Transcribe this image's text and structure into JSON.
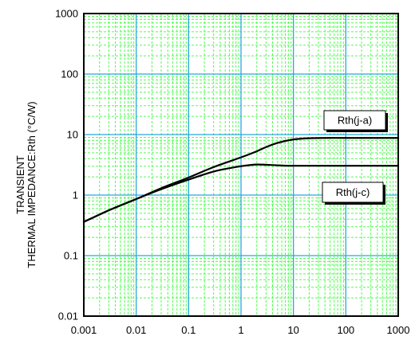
{
  "chart_data": {
    "type": "line",
    "title": "",
    "xlabel": "",
    "ylabel": [
      "TRANSIENT",
      "THERMAL IMPEDANCE:Rth (°C/W)"
    ],
    "x_scale": "log",
    "y_scale": "log",
    "xlim": [
      0.001,
      1000
    ],
    "ylim": [
      0.01,
      1000
    ],
    "grid": "major and minor, both axes",
    "x_ticks": [
      "0.001",
      "0.01",
      "0.1",
      "1",
      "10",
      "100",
      "1000"
    ],
    "y_ticks": [
      "0.01",
      "0.1",
      "1",
      "10",
      "100",
      "1000"
    ],
    "x_tick_values": [
      0.001,
      0.01,
      0.1,
      1,
      10,
      100,
      1000
    ],
    "y_tick_values": [
      0.01,
      0.1,
      1,
      10,
      100,
      1000
    ],
    "series": [
      {
        "name": "Rth(j-a)",
        "points": [
          [
            0.001,
            0.36
          ],
          [
            0.003,
            0.56
          ],
          [
            0.01,
            0.86
          ],
          [
            0.03,
            1.3
          ],
          [
            0.1,
            1.95
          ],
          [
            0.3,
            2.9
          ],
          [
            1,
            4.2
          ],
          [
            2,
            5.3
          ],
          [
            3,
            6.2
          ],
          [
            5,
            7.3
          ],
          [
            10,
            8.3
          ],
          [
            20,
            8.7
          ],
          [
            50,
            8.8
          ],
          [
            100,
            8.8
          ],
          [
            1000,
            8.8
          ]
        ]
      },
      {
        "name": "Rth(j-c)",
        "points": [
          [
            0.001,
            0.36
          ],
          [
            0.003,
            0.56
          ],
          [
            0.01,
            0.86
          ],
          [
            0.03,
            1.25
          ],
          [
            0.1,
            1.8
          ],
          [
            0.3,
            2.45
          ],
          [
            0.7,
            2.85
          ],
          [
            1,
            3.0
          ],
          [
            2,
            3.2
          ],
          [
            5,
            3.1
          ],
          [
            10,
            3.05
          ],
          [
            100,
            3.05
          ],
          [
            1000,
            3.05
          ]
        ]
      }
    ],
    "annotations": [
      {
        "text": "Rth(j-a)",
        "series": "Rth(j-a)"
      },
      {
        "text": "Rth(j-c)",
        "series": "Rth(j-c)"
      }
    ],
    "colors": {
      "major_grid": "#29a8e0",
      "minor_grid": "#4cff4c",
      "line": "#000000",
      "frame": "#000000"
    }
  }
}
